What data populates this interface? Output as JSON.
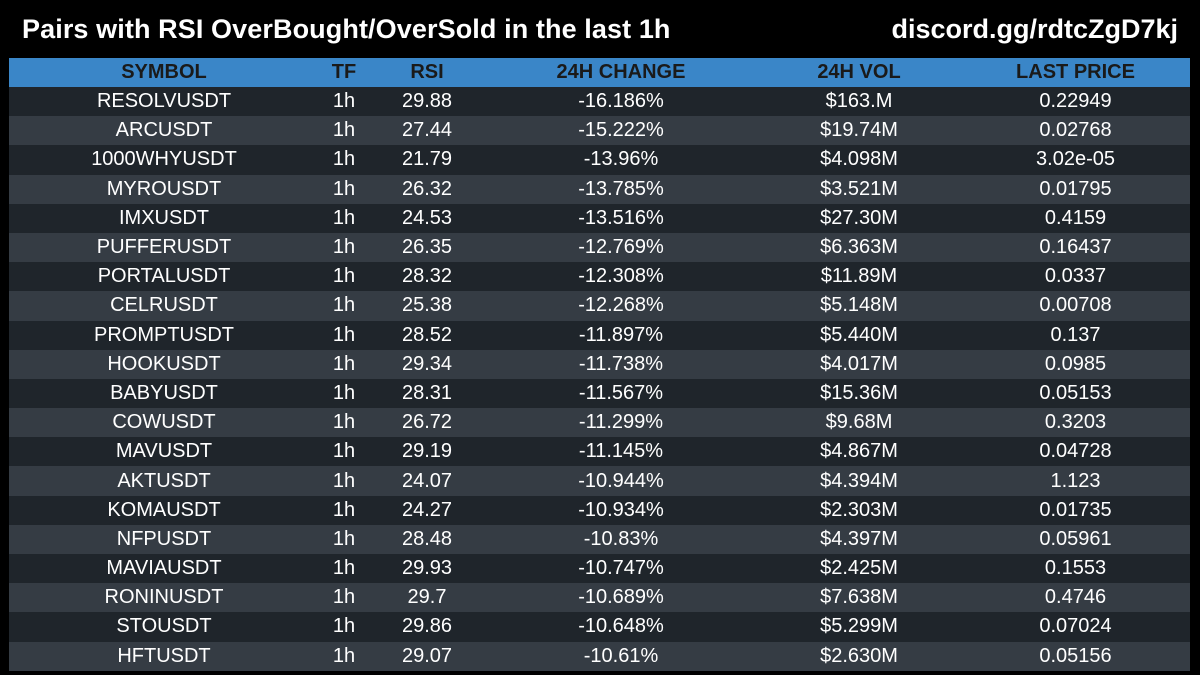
{
  "header": {
    "title": "Pairs with RSI OverBought/OverSold in the last 1h",
    "link": "discord.gg/rdtcZgD7kj"
  },
  "colors": {
    "background": "#000000",
    "header_row": "#3a86c8",
    "row_dark": "#1f252b",
    "row_light": "#353c44"
  },
  "table": {
    "columns": [
      "SYMBOL",
      "TF",
      "RSI",
      "24H CHANGE",
      "24H VOL",
      "LAST PRICE"
    ],
    "rows": [
      {
        "symbol": "RESOLVUSDT",
        "tf": "1h",
        "rsi": "29.88",
        "change": "-16.186%",
        "vol": "$163.M",
        "price": "0.22949"
      },
      {
        "symbol": "ARCUSDT",
        "tf": "1h",
        "rsi": "27.44",
        "change": "-15.222%",
        "vol": "$19.74M",
        "price": "0.02768"
      },
      {
        "symbol": "1000WHYUSDT",
        "tf": "1h",
        "rsi": "21.79",
        "change": "-13.96%",
        "vol": "$4.098M",
        "price": "3.02e-05"
      },
      {
        "symbol": "MYROUSDT",
        "tf": "1h",
        "rsi": "26.32",
        "change": "-13.785%",
        "vol": "$3.521M",
        "price": "0.01795"
      },
      {
        "symbol": "IMXUSDT",
        "tf": "1h",
        "rsi": "24.53",
        "change": "-13.516%",
        "vol": "$27.30M",
        "price": "0.4159"
      },
      {
        "symbol": "PUFFERUSDT",
        "tf": "1h",
        "rsi": "26.35",
        "change": "-12.769%",
        "vol": "$6.363M",
        "price": "0.16437"
      },
      {
        "symbol": "PORTALUSDT",
        "tf": "1h",
        "rsi": "28.32",
        "change": "-12.308%",
        "vol": "$11.89M",
        "price": "0.0337"
      },
      {
        "symbol": "CELRUSDT",
        "tf": "1h",
        "rsi": "25.38",
        "change": "-12.268%",
        "vol": "$5.148M",
        "price": "0.00708"
      },
      {
        "symbol": "PROMPTUSDT",
        "tf": "1h",
        "rsi": "28.52",
        "change": "-11.897%",
        "vol": "$5.440M",
        "price": "0.137"
      },
      {
        "symbol": "HOOKUSDT",
        "tf": "1h",
        "rsi": "29.34",
        "change": "-11.738%",
        "vol": "$4.017M",
        "price": "0.0985"
      },
      {
        "symbol": "BABYUSDT",
        "tf": "1h",
        "rsi": "28.31",
        "change": "-11.567%",
        "vol": "$15.36M",
        "price": "0.05153"
      },
      {
        "symbol": "COWUSDT",
        "tf": "1h",
        "rsi": "26.72",
        "change": "-11.299%",
        "vol": "$9.68M",
        "price": "0.3203"
      },
      {
        "symbol": "MAVUSDT",
        "tf": "1h",
        "rsi": "29.19",
        "change": "-11.145%",
        "vol": "$4.867M",
        "price": "0.04728"
      },
      {
        "symbol": "AKTUSDT",
        "tf": "1h",
        "rsi": "24.07",
        "change": "-10.944%",
        "vol": "$4.394M",
        "price": "1.123"
      },
      {
        "symbol": "KOMAUSDT",
        "tf": "1h",
        "rsi": "24.27",
        "change": "-10.934%",
        "vol": "$2.303M",
        "price": "0.01735"
      },
      {
        "symbol": "NFPUSDT",
        "tf": "1h",
        "rsi": "28.48",
        "change": "-10.83%",
        "vol": "$4.397M",
        "price": "0.05961"
      },
      {
        "symbol": "MAVIAUSDT",
        "tf": "1h",
        "rsi": "29.93",
        "change": "-10.747%",
        "vol": "$2.425M",
        "price": "0.1553"
      },
      {
        "symbol": "RONINUSDT",
        "tf": "1h",
        "rsi": "29.7",
        "change": "-10.689%",
        "vol": "$7.638M",
        "price": "0.4746"
      },
      {
        "symbol": "STOUSDT",
        "tf": "1h",
        "rsi": "29.86",
        "change": "-10.648%",
        "vol": "$5.299M",
        "price": "0.07024"
      },
      {
        "symbol": "HFTUSDT",
        "tf": "1h",
        "rsi": "29.07",
        "change": "-10.61%",
        "vol": "$2.630M",
        "price": "0.05156"
      }
    ]
  }
}
